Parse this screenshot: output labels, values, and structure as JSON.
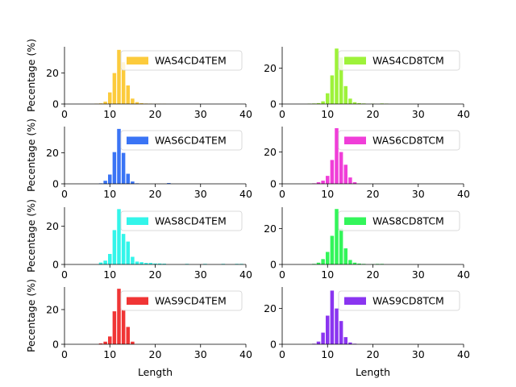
{
  "chart_data": [
    {
      "type": "bar",
      "legend": "WAS4CD4TEM",
      "color": "#fccb3c",
      "legend_position": "top-right",
      "xlim": [
        0,
        40
      ],
      "ylim": [
        0,
        37
      ],
      "xticks": [
        0,
        10,
        20,
        30,
        40
      ],
      "yticks": [
        0,
        20
      ],
      "ylabel": "Pecentage (%)",
      "xlabel": "",
      "x": [
        7,
        8,
        9,
        10,
        11,
        12,
        13,
        14,
        15,
        16,
        17,
        18,
        19,
        20,
        21,
        22
      ],
      "values": [
        0.2,
        0.4,
        1.5,
        7.5,
        20,
        35,
        27,
        12,
        3.5,
        1.2,
        0.5,
        0.3,
        0.2,
        0.1,
        0.1,
        0.1
      ]
    },
    {
      "type": "bar",
      "legend": "WAS4CD8TCM",
      "color": "#9ef23a",
      "legend_position": "top-right",
      "xlim": [
        0,
        40
      ],
      "ylim": [
        0,
        32
      ],
      "xticks": [
        0,
        10,
        20,
        30,
        40
      ],
      "yticks": [
        0,
        20
      ],
      "ylabel": "",
      "xlabel": "",
      "x": [
        6,
        7,
        8,
        9,
        10,
        11,
        12,
        13,
        14,
        15,
        16,
        17,
        18,
        20,
        22,
        23
      ],
      "values": [
        0.2,
        0.3,
        0.5,
        1.5,
        6,
        16,
        31,
        26,
        10,
        3,
        1,
        0.5,
        0.3,
        0.2,
        0.3,
        0.2
      ]
    },
    {
      "type": "bar",
      "legend": "WAS6CD4TEM",
      "color": "#3a74f5",
      "legend_position": "top-right",
      "xlim": [
        0,
        40
      ],
      "ylim": [
        0,
        37
      ],
      "xticks": [
        0,
        10,
        20,
        30,
        40
      ],
      "yticks": [
        0,
        20
      ],
      "ylabel": "Pecentage (%)",
      "xlabel": "",
      "x": [
        8,
        9,
        10,
        11,
        12,
        13,
        14,
        15,
        16,
        23
      ],
      "values": [
        0.3,
        2,
        6,
        20.5,
        35.5,
        20,
        6.5,
        1.5,
        0.3,
        0.5
      ]
    },
    {
      "type": "bar",
      "legend": "WAS6CD8TCM",
      "color": "#f03ed8",
      "legend_position": "top-right",
      "xlim": [
        0,
        40
      ],
      "ylim": [
        0,
        36
      ],
      "xticks": [
        0,
        10,
        20,
        30,
        40
      ],
      "yticks": [
        0,
        20
      ],
      "ylabel": "",
      "xlabel": "",
      "x": [
        7,
        8,
        9,
        10,
        11,
        12,
        13,
        14,
        15,
        16
      ],
      "values": [
        0.3,
        1,
        2,
        5,
        15,
        35,
        20,
        12,
        4,
        1
      ]
    },
    {
      "type": "bar",
      "legend": "WAS8CD4TEM",
      "color": "#33f5ea",
      "legend_position": "top-right",
      "xlim": [
        0,
        40
      ],
      "ylim": [
        0,
        30
      ],
      "xticks": [
        0,
        10,
        20,
        30,
        40
      ],
      "yticks": [
        0,
        20
      ],
      "ylabel": "Pecentage (%)",
      "xlabel": "",
      "x": [
        8,
        9,
        10,
        11,
        12,
        13,
        14,
        15,
        16,
        17,
        18,
        19,
        20,
        21,
        22,
        27,
        31,
        35,
        38,
        39
      ],
      "values": [
        1,
        2,
        5.5,
        18,
        29,
        16,
        12,
        4,
        1.5,
        1.2,
        0.8,
        0.8,
        0.5,
        0.5,
        0.4,
        0.3,
        0.3,
        0.3,
        0.3,
        0.3
      ]
    },
    {
      "type": "bar",
      "legend": "WAS8CD8TCM",
      "color": "#33f55a",
      "legend_position": "top-right",
      "xlim": [
        0,
        40
      ],
      "ylim": [
        0,
        32
      ],
      "xticks": [
        0,
        10,
        20,
        30,
        40
      ],
      "yticks": [
        0,
        20
      ],
      "ylabel": "",
      "xlabel": "",
      "x": [
        7,
        8,
        9,
        10,
        11,
        12,
        13,
        14,
        15,
        16,
        17,
        18,
        20,
        21,
        22
      ],
      "values": [
        0.3,
        1,
        3,
        7,
        16,
        31,
        20,
        9,
        2.5,
        1,
        0.5,
        0.3,
        0.2,
        0.3,
        0.3
      ]
    },
    {
      "type": "bar",
      "legend": "WAS9CD4TEM",
      "color": "#f03535",
      "legend_position": "top-right",
      "xlim": [
        0,
        40
      ],
      "ylim": [
        0,
        33
      ],
      "xticks": [
        0,
        10,
        20,
        30,
        40
      ],
      "yticks": [
        0,
        20
      ],
      "ylabel": "Pecentage (%)",
      "xlabel": "Length",
      "x": [
        8,
        9,
        10,
        11,
        12,
        13,
        14,
        15
      ],
      "values": [
        0.5,
        1.5,
        4.5,
        19,
        32,
        20,
        10,
        1.5
      ]
    },
    {
      "type": "bar",
      "legend": "WAS9CD8TCM",
      "color": "#8a35f0",
      "legend_position": "top-right",
      "xlim": [
        0,
        40
      ],
      "ylim": [
        0,
        32
      ],
      "xticks": [
        0,
        10,
        20,
        30,
        40
      ],
      "yticks": [
        0,
        20
      ],
      "ylabel": "",
      "xlabel": "Length",
      "x": [
        7,
        8,
        9,
        10,
        11,
        12,
        13,
        14,
        15,
        16
      ],
      "values": [
        0.3,
        1.5,
        6.5,
        16,
        30,
        20,
        13,
        4,
        1,
        0.3
      ]
    }
  ]
}
